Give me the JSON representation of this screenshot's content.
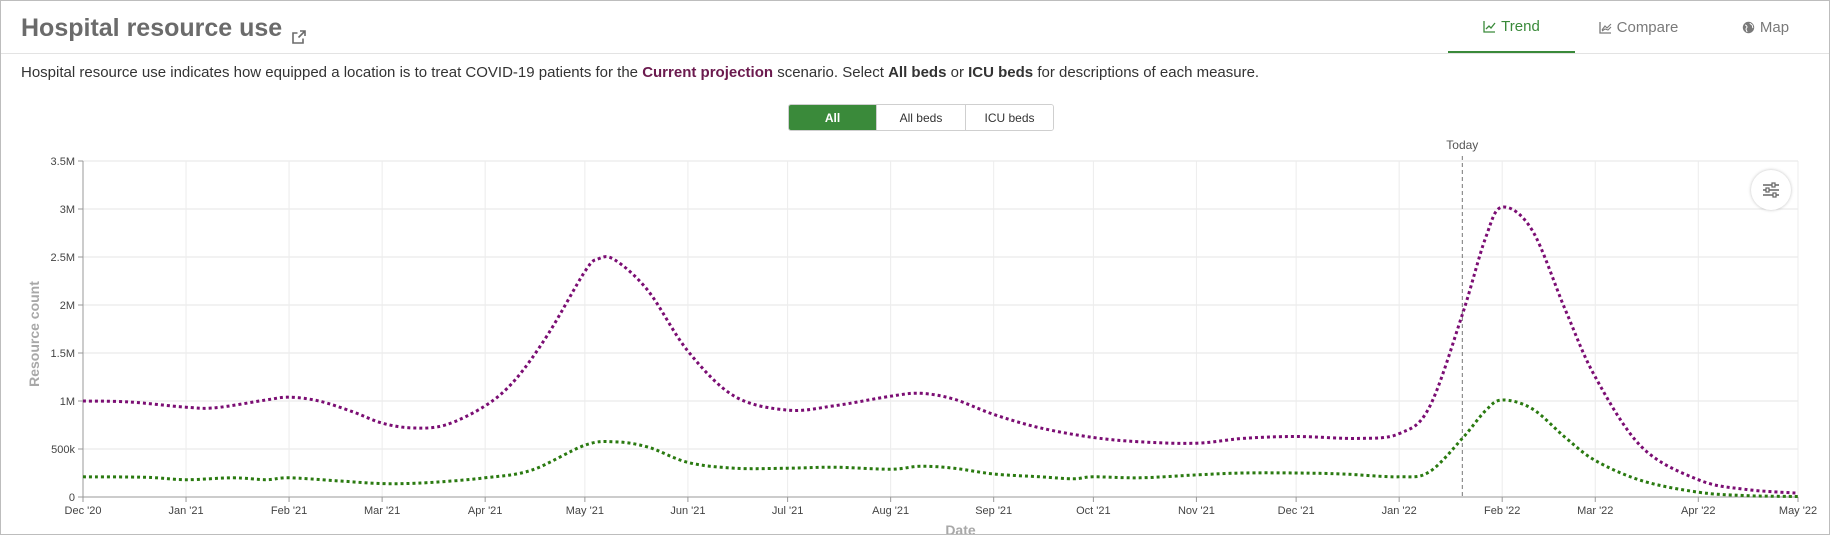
{
  "header": {
    "title": "Hospital resource use",
    "tabs": [
      {
        "label": "Trend",
        "icon": "line-chart-icon",
        "active": true
      },
      {
        "label": "Compare",
        "icon": "compare-chart-icon",
        "active": false
      },
      {
        "label": "Map",
        "icon": "globe-icon",
        "active": false
      }
    ]
  },
  "description": {
    "prefix": "Hospital resource use indicates how equipped a location is to treat COVID-19 patients for the ",
    "scenario": "Current projection",
    "mid1": " scenario. Select ",
    "all_beds": "All beds",
    "mid2": " or ",
    "icu_beds": "ICU beds",
    "suffix": " for descriptions of each measure."
  },
  "toggle": {
    "options": [
      {
        "label": "All",
        "active": true
      },
      {
        "label": "All beds",
        "active": false
      },
      {
        "label": "ICU beds",
        "active": false
      }
    ]
  },
  "colors": {
    "accent": "#3a8a3a",
    "series_all_beds": "#7b0d73",
    "series_icu_beds": "#2a7a10",
    "scenario_text": "#6b1a4e"
  },
  "chart_data": {
    "type": "line",
    "title": "",
    "xlabel": "Date",
    "ylabel": "Resource count",
    "ylim": [
      0,
      3500000
    ],
    "yticks": [
      0,
      500000,
      1000000,
      1500000,
      2000000,
      2500000,
      3000000,
      3500000
    ],
    "ytick_labels": [
      "0",
      "500k",
      "1M",
      "1.5M",
      "2M",
      "2.5M",
      "3M",
      "3.5M"
    ],
    "xlim": [
      "2020-12-01",
      "2022-05-01"
    ],
    "xticks": [
      "2020-12-01",
      "2021-01-01",
      "2021-02-01",
      "2021-03-01",
      "2021-04-01",
      "2021-05-01",
      "2021-06-01",
      "2021-07-01",
      "2021-08-01",
      "2021-09-01",
      "2021-10-01",
      "2021-11-01",
      "2021-12-01",
      "2022-01-01",
      "2022-02-01",
      "2022-03-01",
      "2022-04-01",
      "2022-05-01"
    ],
    "xtick_labels": [
      "Dec '20",
      "Jan '21",
      "Feb '21",
      "Mar '21",
      "Apr '21",
      "May '21",
      "Jun '21",
      "Jul '21",
      "Aug '21",
      "Sep '21",
      "Oct '21",
      "Nov '21",
      "Dec '21",
      "Jan '22",
      "Feb '22",
      "Mar '22",
      "Apr '22",
      "May '22"
    ],
    "grid": true,
    "annotation": {
      "label": "Today",
      "x": "2022-01-20"
    },
    "series": [
      {
        "color": "#7b0d73",
        "points": [
          [
            "2020-12-01",
            1000000
          ],
          [
            "2020-12-15",
            990000
          ],
          [
            "2021-01-01",
            935000
          ],
          [
            "2021-01-10",
            930000
          ],
          [
            "2021-01-25",
            1010000
          ],
          [
            "2021-02-01",
            1040000
          ],
          [
            "2021-02-10",
            1000000
          ],
          [
            "2021-02-20",
            890000
          ],
          [
            "2021-03-01",
            770000
          ],
          [
            "2021-03-10",
            720000
          ],
          [
            "2021-03-20",
            750000
          ],
          [
            "2021-04-01",
            950000
          ],
          [
            "2021-04-10",
            1220000
          ],
          [
            "2021-04-20",
            1700000
          ],
          [
            "2021-05-01",
            2350000
          ],
          [
            "2021-05-05",
            2480000
          ],
          [
            "2021-05-10",
            2470000
          ],
          [
            "2021-05-20",
            2150000
          ],
          [
            "2021-06-01",
            1520000
          ],
          [
            "2021-06-15",
            1050000
          ],
          [
            "2021-07-01",
            905000
          ],
          [
            "2021-07-15",
            950000
          ],
          [
            "2021-08-01",
            1050000
          ],
          [
            "2021-08-10",
            1080000
          ],
          [
            "2021-08-20",
            1020000
          ],
          [
            "2021-09-01",
            860000
          ],
          [
            "2021-09-15",
            720000
          ],
          [
            "2021-10-01",
            620000
          ],
          [
            "2021-10-15",
            575000
          ],
          [
            "2021-11-01",
            560000
          ],
          [
            "2021-11-15",
            610000
          ],
          [
            "2021-12-01",
            630000
          ],
          [
            "2021-12-20",
            610000
          ],
          [
            "2022-01-01",
            660000
          ],
          [
            "2022-01-10",
            930000
          ],
          [
            "2022-01-20",
            1900000
          ],
          [
            "2022-01-27",
            2700000
          ],
          [
            "2022-02-01",
            3020000
          ],
          [
            "2022-02-10",
            2780000
          ],
          [
            "2022-02-20",
            1950000
          ],
          [
            "2022-03-01",
            1250000
          ],
          [
            "2022-03-15",
            520000
          ],
          [
            "2022-04-01",
            180000
          ],
          [
            "2022-04-15",
            80000
          ],
          [
            "2022-05-01",
            40000
          ]
        ]
      },
      {
        "color": "#2a7a10",
        "points": [
          [
            "2020-12-01",
            210000
          ],
          [
            "2020-12-20",
            205000
          ],
          [
            "2021-01-01",
            180000
          ],
          [
            "2021-01-15",
            200000
          ],
          [
            "2021-01-25",
            180000
          ],
          [
            "2021-02-01",
            200000
          ],
          [
            "2021-02-15",
            170000
          ],
          [
            "2021-03-01",
            140000
          ],
          [
            "2021-03-15",
            150000
          ],
          [
            "2021-04-01",
            200000
          ],
          [
            "2021-04-15",
            280000
          ],
          [
            "2021-05-01",
            540000
          ],
          [
            "2021-05-10",
            575000
          ],
          [
            "2021-05-20",
            520000
          ],
          [
            "2021-06-01",
            360000
          ],
          [
            "2021-06-15",
            300000
          ],
          [
            "2021-07-01",
            300000
          ],
          [
            "2021-07-15",
            310000
          ],
          [
            "2021-08-01",
            290000
          ],
          [
            "2021-08-10",
            320000
          ],
          [
            "2021-08-20",
            300000
          ],
          [
            "2021-09-01",
            240000
          ],
          [
            "2021-09-15",
            210000
          ],
          [
            "2021-09-25",
            190000
          ],
          [
            "2021-10-01",
            210000
          ],
          [
            "2021-10-15",
            200000
          ],
          [
            "2021-11-01",
            230000
          ],
          [
            "2021-11-15",
            250000
          ],
          [
            "2021-12-01",
            250000
          ],
          [
            "2021-12-15",
            240000
          ],
          [
            "2022-01-01",
            210000
          ],
          [
            "2022-01-10",
            260000
          ],
          [
            "2022-01-20",
            610000
          ],
          [
            "2022-01-27",
            900000
          ],
          [
            "2022-02-01",
            1010000
          ],
          [
            "2022-02-10",
            920000
          ],
          [
            "2022-02-20",
            620000
          ],
          [
            "2022-03-01",
            380000
          ],
          [
            "2022-03-15",
            170000
          ],
          [
            "2022-04-01",
            50000
          ],
          [
            "2022-04-15",
            15000
          ],
          [
            "2022-05-01",
            5000
          ]
        ]
      }
    ]
  }
}
